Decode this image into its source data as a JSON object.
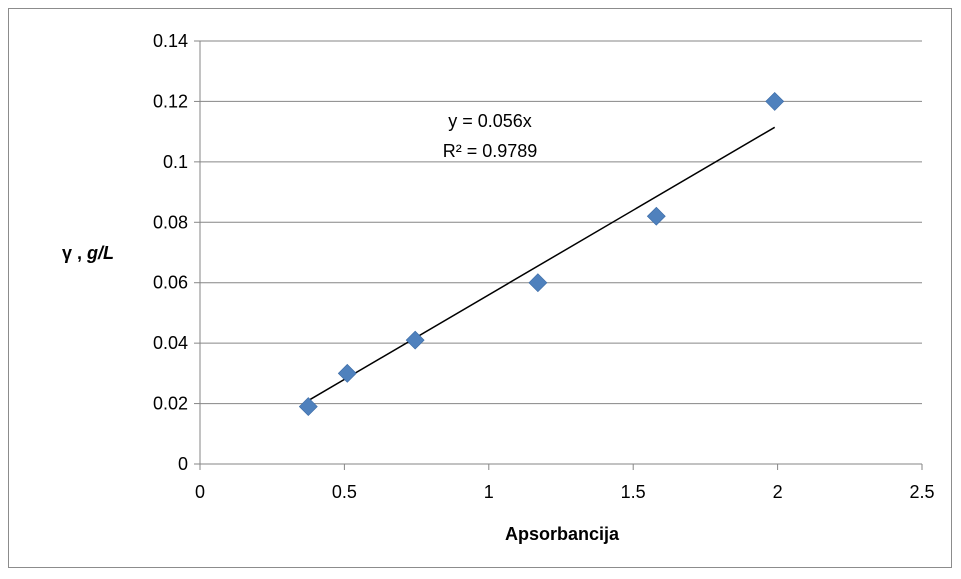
{
  "chart_data": {
    "type": "scatter",
    "title": "",
    "xlabel": "Apsorbancija",
    "ylabel_symbol": "γ",
    "ylabel_separator": " , ",
    "ylabel_unit": "g/L",
    "xlim": [
      0,
      2.5
    ],
    "ylim": [
      0,
      0.14
    ],
    "x_ticks": [
      "0",
      "0.5",
      "1",
      "1.5",
      "2",
      "2.5"
    ],
    "y_ticks": [
      "0",
      "0.02",
      "0.04",
      "0.06",
      "0.08",
      "0.1",
      "0.12",
      "0.14"
    ],
    "grid": "horizontal",
    "legend": "none",
    "marker_color": "#4f81bd",
    "marker_shape": "diamond",
    "points": [
      {
        "x": 0.375,
        "y": 0.019
      },
      {
        "x": 0.51,
        "y": 0.03
      },
      {
        "x": 0.745,
        "y": 0.041
      },
      {
        "x": 1.17,
        "y": 0.06
      },
      {
        "x": 1.58,
        "y": 0.082
      },
      {
        "x": 1.99,
        "y": 0.12
      }
    ],
    "trendline": {
      "type": "linear",
      "slope": 0.056,
      "intercept": 0,
      "x_range": [
        0.375,
        1.99
      ],
      "color": "#000000"
    },
    "annotations": {
      "equation": "y = 0.056x",
      "r_squared": "R² = 0.9789"
    }
  }
}
